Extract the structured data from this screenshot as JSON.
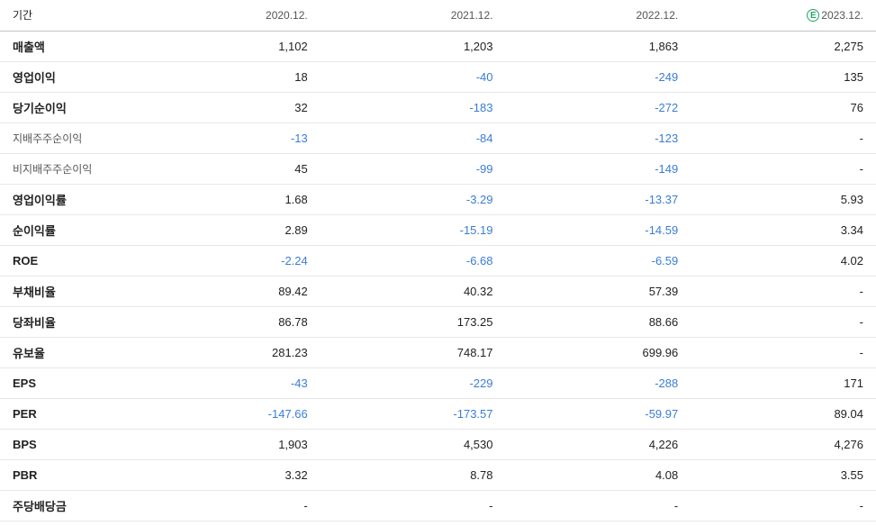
{
  "table": {
    "header_label": "기간",
    "periods": [
      {
        "label": "2020.12.",
        "estimate": false
      },
      {
        "label": "2021.12.",
        "estimate": false
      },
      {
        "label": "2022.12.",
        "estimate": false
      },
      {
        "label": "2023.12.",
        "estimate": true
      }
    ],
    "estimate_badge": "E",
    "rows": [
      {
        "label": "매출액",
        "bold": true,
        "sub": false,
        "values": [
          "1,102",
          "1,203",
          "1,863",
          "2,275"
        ],
        "neg": [
          false,
          false,
          false,
          false
        ]
      },
      {
        "label": "영업이익",
        "bold": true,
        "sub": false,
        "values": [
          "18",
          "-40",
          "-249",
          "135"
        ],
        "neg": [
          false,
          true,
          true,
          false
        ]
      },
      {
        "label": "당기순이익",
        "bold": true,
        "sub": false,
        "values": [
          "32",
          "-183",
          "-272",
          "76"
        ],
        "neg": [
          false,
          true,
          true,
          false
        ]
      },
      {
        "label": "지배주주순이익",
        "bold": false,
        "sub": true,
        "values": [
          "-13",
          "-84",
          "-123",
          "-"
        ],
        "neg": [
          true,
          true,
          true,
          false
        ]
      },
      {
        "label": "비지배주주순이익",
        "bold": false,
        "sub": true,
        "values": [
          "45",
          "-99",
          "-149",
          "-"
        ],
        "neg": [
          false,
          true,
          true,
          false
        ]
      },
      {
        "label": "영업이익률",
        "bold": true,
        "sub": false,
        "values": [
          "1.68",
          "-3.29",
          "-13.37",
          "5.93"
        ],
        "neg": [
          false,
          true,
          true,
          false
        ]
      },
      {
        "label": "순이익률",
        "bold": true,
        "sub": false,
        "values": [
          "2.89",
          "-15.19",
          "-14.59",
          "3.34"
        ],
        "neg": [
          false,
          true,
          true,
          false
        ]
      },
      {
        "label": "ROE",
        "bold": true,
        "sub": false,
        "values": [
          "-2.24",
          "-6.68",
          "-6.59",
          "4.02"
        ],
        "neg": [
          true,
          true,
          true,
          false
        ]
      },
      {
        "label": "부채비율",
        "bold": true,
        "sub": false,
        "values": [
          "89.42",
          "40.32",
          "57.39",
          "-"
        ],
        "neg": [
          false,
          false,
          false,
          false
        ]
      },
      {
        "label": "당좌비율",
        "bold": true,
        "sub": false,
        "values": [
          "86.78",
          "173.25",
          "88.66",
          "-"
        ],
        "neg": [
          false,
          false,
          false,
          false
        ]
      },
      {
        "label": "유보율",
        "bold": true,
        "sub": false,
        "values": [
          "281.23",
          "748.17",
          "699.96",
          "-"
        ],
        "neg": [
          false,
          false,
          false,
          false
        ]
      },
      {
        "label": "EPS",
        "bold": true,
        "sub": false,
        "values": [
          "-43",
          "-229",
          "-288",
          "171"
        ],
        "neg": [
          true,
          true,
          true,
          false
        ]
      },
      {
        "label": "PER",
        "bold": true,
        "sub": false,
        "values": [
          "-147.66",
          "-173.57",
          "-59.97",
          "89.04"
        ],
        "neg": [
          true,
          true,
          true,
          false
        ]
      },
      {
        "label": "BPS",
        "bold": true,
        "sub": false,
        "values": [
          "1,903",
          "4,530",
          "4,226",
          "4,276"
        ],
        "neg": [
          false,
          false,
          false,
          false
        ]
      },
      {
        "label": "PBR",
        "bold": true,
        "sub": false,
        "values": [
          "3.32",
          "8.78",
          "4.08",
          "3.55"
        ],
        "neg": [
          false,
          false,
          false,
          false
        ]
      },
      {
        "label": "주당배당금",
        "bold": true,
        "sub": false,
        "values": [
          "-",
          "-",
          "-",
          "-"
        ],
        "neg": [
          false,
          false,
          false,
          false
        ]
      }
    ],
    "colors": {
      "text": "#222222",
      "sub_text": "#555555",
      "negative": "#3b7dd8",
      "border": "#e8e8e8",
      "header_border": "#c0c0c0",
      "badge": "#21a467",
      "background": "#ffffff"
    }
  }
}
